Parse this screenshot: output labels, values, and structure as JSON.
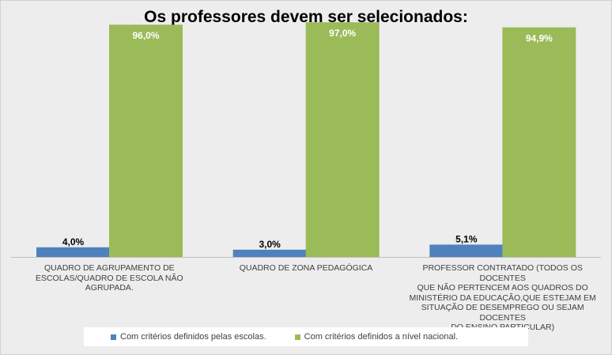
{
  "chart_data": {
    "type": "bar",
    "title": "Os professores devem ser selecionados:",
    "categories": [
      "QUADRO DE AGRUPAMENTO DE ESCOLAS/QUADRO DE ESCOLA NÃO AGRUPADA.",
      "QUADRO DE ZONA PEDAGÓGICA",
      "PROFESSOR CONTRATADO (TODOS OS DOCENTES QUE NÃO PERTENCEM AOS QUADROS DO MINISTÉRIO DA EDUCAÇÃO,QUE ESTEJAM EM SITUAÇÃO DE DESEMPREGO OU SEJAM DOCENTES DO ENSINO PARTICULAR)"
    ],
    "category_lines": [
      [
        "QUADRO DE AGRUPAMENTO DE",
        "ESCOLAS/QUADRO DE ESCOLA NÃO AGRUPADA."
      ],
      [
        "QUADRO DE ZONA PEDAGÓGICA"
      ],
      [
        "PROFESSOR CONTRATADO (TODOS OS DOCENTES",
        "QUE NÃO PERTENCEM AOS QUADROS DO",
        "MINISTÉRIO DA EDUCAÇÃO,QUE ESTEJAM EM",
        "SITUAÇÃO DE DESEMPREGO OU SEJAM DOCENTES",
        "DO ENSINO PARTICULAR)"
      ]
    ],
    "series": [
      {
        "name": "Com critérios definidos pelas escolas.",
        "values": [
          4.0,
          3.0,
          5.1
        ],
        "labels": [
          "4,0%",
          "3,0%",
          "5,1%"
        ],
        "color": "#4f81bd"
      },
      {
        "name": "Com critérios definidos a nível nacional.",
        "values": [
          96.0,
          97.0,
          94.9
        ],
        "labels": [
          "96,0%",
          "97,0%",
          "94,9%"
        ],
        "color": "#9bbb59"
      }
    ],
    "ylim": [
      0,
      100
    ],
    "grid": false,
    "legend_position": "bottom",
    "data_label_color_series1": "#000000",
    "data_label_color_series2": "#ffffff"
  }
}
